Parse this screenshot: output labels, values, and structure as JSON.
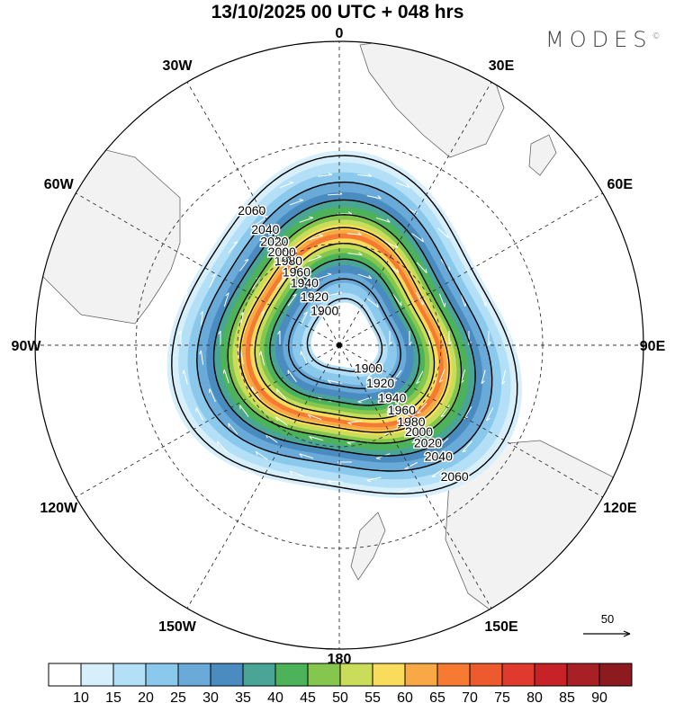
{
  "title": "13/10/2025  00 UTC  + 048 hrs",
  "logo": "MODES",
  "logo_mark": "©",
  "longitude_labels": [
    "0",
    "30E",
    "60E",
    "90E",
    "120E",
    "150E",
    "180",
    "150W",
    "120W",
    "90W",
    "60W",
    "30W"
  ],
  "contour_labels": [
    "1900",
    "1920",
    "1940",
    "1960",
    "1980",
    "2000",
    "2020",
    "2040",
    "2060"
  ],
  "vector_reference": "50",
  "colorbar": {
    "levels": [
      "10",
      "15",
      "20",
      "25",
      "30",
      "35",
      "40",
      "45",
      "50",
      "55",
      "60",
      "65",
      "70",
      "75",
      "80",
      "85",
      "90"
    ],
    "colors": [
      "#ffffff",
      "#d6effb",
      "#b3e0f7",
      "#8ac8ec",
      "#6aaad9",
      "#4a8cc0",
      "#4aa596",
      "#4db35a",
      "#84c64e",
      "#c9dd5a",
      "#fadc5c",
      "#f8a845",
      "#f77a32",
      "#ec5a2d",
      "#e0392e",
      "#c82229",
      "#a91f26",
      "#8c1a1f"
    ]
  }
}
